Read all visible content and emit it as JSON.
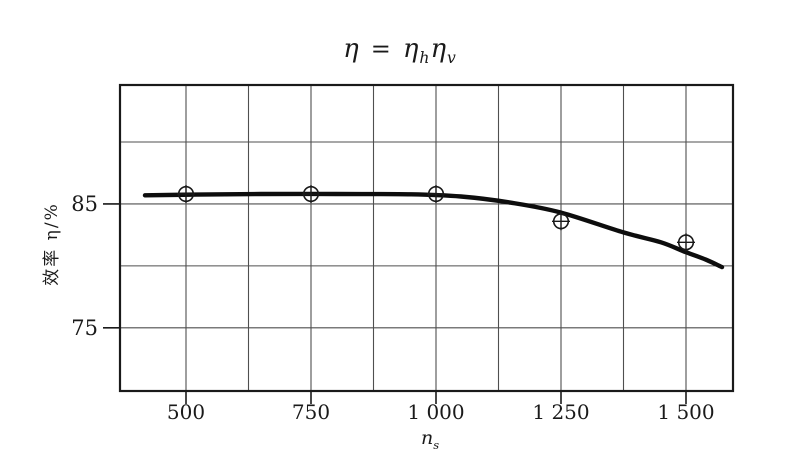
{
  "figure": {
    "background": "#ffffff",
    "ink_color": "#1a1a1a",
    "grid_color": "#4f4f4f",
    "curve_color": "#0d0d0d"
  },
  "chart_data": {
    "type": "line",
    "title": "η = ηₕηᵥ",
    "title_parts": {
      "lhs": "η",
      "eq": "=",
      "rhs1": "η",
      "rhs1_sub": "h",
      "rhs2": "η",
      "rhs2_sub": "v"
    },
    "xlabel_base": "n",
    "xlabel_sub": "s",
    "ylabel": "效率 η/%",
    "x_domain": [
      368,
      1594
    ],
    "y_domain": [
      69.9,
      94.6
    ],
    "x_gridlines": [
      500,
      625,
      750,
      875,
      1000,
      1125,
      1250,
      1375,
      1500
    ],
    "y_gridlines": [
      75,
      80,
      85,
      90
    ],
    "x_ticks": [
      {
        "value": 500,
        "label": "500"
      },
      {
        "value": 750,
        "label": "750"
      },
      {
        "value": 1000,
        "label": "1 000"
      },
      {
        "value": 1250,
        "label": "1 250"
      },
      {
        "value": 1500,
        "label": "1 500"
      }
    ],
    "y_ticks": [
      {
        "value": 85,
        "label": "85"
      },
      {
        "value": 75,
        "label": "75"
      }
    ],
    "marker_style": "circle-plus",
    "grid": true,
    "legend": null,
    "points": [
      {
        "x": 500,
        "y": 85.8
      },
      {
        "x": 750,
        "y": 85.8
      },
      {
        "x": 1000,
        "y": 85.8
      },
      {
        "x": 1250,
        "y": 83.6
      },
      {
        "x": 1500,
        "y": 81.9
      }
    ],
    "curve": [
      [
        418,
        85.7
      ],
      [
        520,
        85.75
      ],
      [
        650,
        85.8
      ],
      [
        800,
        85.8
      ],
      [
        950,
        85.78
      ],
      [
        1050,
        85.6
      ],
      [
        1150,
        85.1
      ],
      [
        1250,
        84.3
      ],
      [
        1375,
        82.7
      ],
      [
        1450,
        81.9
      ],
      [
        1500,
        81.1
      ],
      [
        1540,
        80.5
      ],
      [
        1572,
        79.9
      ]
    ]
  }
}
